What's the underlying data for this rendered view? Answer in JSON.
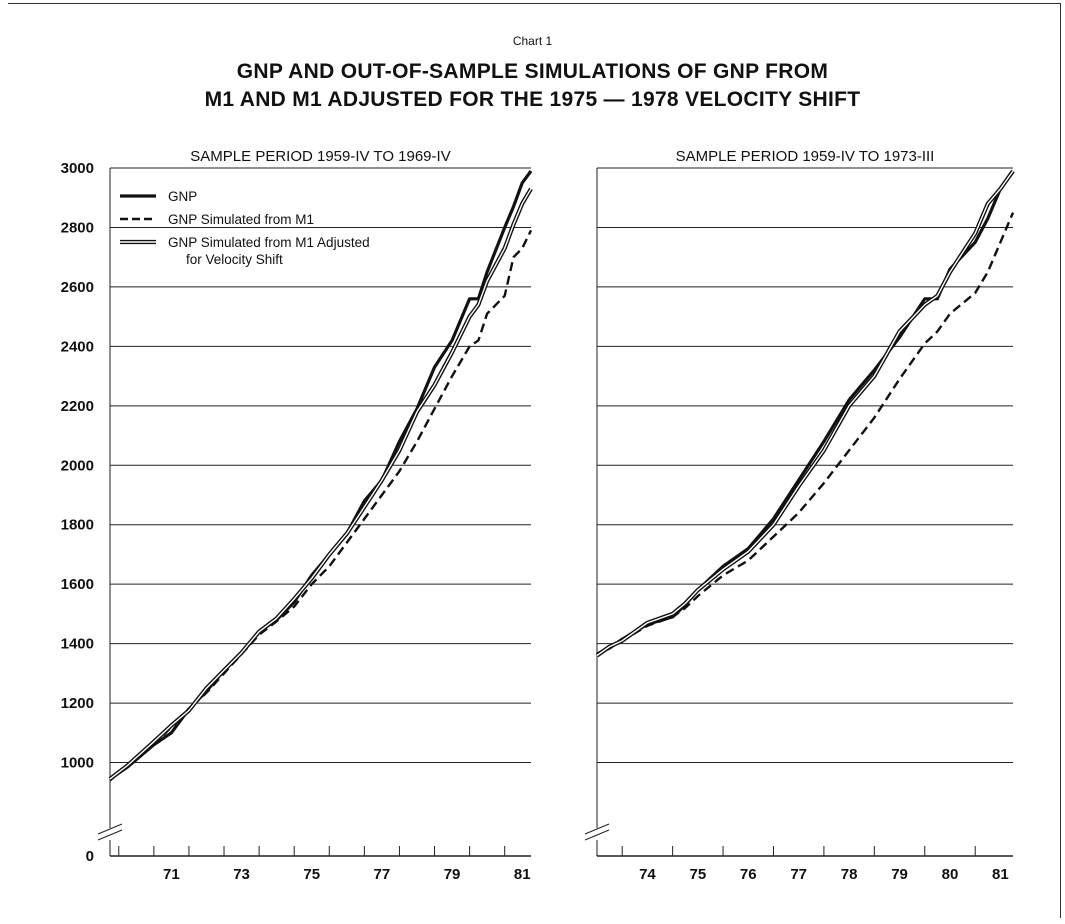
{
  "figure": {
    "label": "Chart 1",
    "title_line1": "GNP AND OUT-OF-SAMPLE SIMULATIONS OF GNP FROM",
    "title_line2": "M1 AND M1 ADJUSTED FOR THE 1975 — 1978 VELOCITY SHIFT"
  },
  "legend": {
    "items": [
      {
        "label": "GNP",
        "style": "solid"
      },
      {
        "label": "GNP Simulated from M1",
        "style": "dashed"
      },
      {
        "label": "GNP Simulated from M1 Adjusted",
        "label2": "for Velocity Shift",
        "style": "double"
      }
    ]
  },
  "chart_data": [
    {
      "type": "line",
      "title": "SAMPLE PERIOD 1959-IV TO 1969-IV",
      "xlabel": "",
      "ylabel": "",
      "xlim": [
        1969.75,
        1981.75
      ],
      "ylim": [
        800,
        3000
      ],
      "y_axis_break": true,
      "y_ticks": [
        0,
        1000,
        1200,
        1400,
        1600,
        1800,
        2000,
        2200,
        2400,
        2600,
        2800,
        3000
      ],
      "x_ticks": [
        71,
        73,
        75,
        77,
        79,
        81
      ],
      "grid": "horizontal",
      "legend_position": "top-left",
      "x": [
        1969.75,
        1970.25,
        1971,
        1971.5,
        1972,
        1972.5,
        1973,
        1973.5,
        1974,
        1974.5,
        1975,
        1975.5,
        1976,
        1976.5,
        1977,
        1977.5,
        1978,
        1978.5,
        1979,
        1979.5,
        1980,
        1980.25,
        1980.5,
        1981,
        1981.25,
        1981.5,
        1981.75
      ],
      "series": [
        {
          "name": "GNP",
          "style": "solid",
          "values": [
            945,
            985,
            1060,
            1100,
            1180,
            1240,
            1310,
            1370,
            1440,
            1480,
            1540,
            1630,
            1700,
            1770,
            1880,
            1950,
            2080,
            2190,
            2330,
            2420,
            2560,
            2560,
            2650,
            2800,
            2870,
            2950,
            2990
          ]
        },
        {
          "name": "GNP Simulated from M1",
          "style": "dashed",
          "values": [
            940,
            990,
            1060,
            1120,
            1180,
            1235,
            1300,
            1365,
            1430,
            1475,
            1525,
            1600,
            1660,
            1740,
            1820,
            1900,
            1980,
            2080,
            2190,
            2300,
            2400,
            2420,
            2510,
            2570,
            2700,
            2730,
            2790
          ]
        },
        {
          "name": "GNP Simulated from M1 Adjusted for Velocity Shift",
          "style": "double",
          "values": [
            945,
            990,
            1070,
            1125,
            1175,
            1250,
            1310,
            1370,
            1440,
            1485,
            1550,
            1620,
            1700,
            1770,
            1860,
            1950,
            2050,
            2180,
            2270,
            2380,
            2500,
            2540,
            2620,
            2730,
            2810,
            2880,
            2930
          ]
        }
      ]
    },
    {
      "type": "line",
      "title": "SAMPLE PERIOD 1959-IV TO 1973-III",
      "xlabel": "",
      "ylabel": "",
      "xlim": [
        1973.5,
        1981.75
      ],
      "ylim": [
        800,
        3000
      ],
      "y_axis_break": true,
      "x_ticks": [
        74,
        75,
        76,
        77,
        78,
        79,
        80,
        81
      ],
      "grid": "horizontal",
      "x": [
        1973.5,
        1973.75,
        1974,
        1974.5,
        1975,
        1975.25,
        1975.5,
        1976,
        1976.5,
        1977,
        1977.5,
        1978,
        1978.5,
        1979,
        1979.5,
        1980,
        1980.25,
        1980.5,
        1981,
        1981.25,
        1981.5,
        1981.75
      ],
      "series": [
        {
          "name": "GNP",
          "style": "solid",
          "values": [
            1365,
            1385,
            1415,
            1465,
            1490,
            1530,
            1580,
            1660,
            1720,
            1820,
            1950,
            2080,
            2220,
            2320,
            2430,
            2560,
            2560,
            2660,
            2750,
            2830,
            2930,
            2990
          ]
        },
        {
          "name": "GNP Simulated from M1",
          "style": "dashed",
          "values": [
            1360,
            1385,
            1410,
            1460,
            1490,
            1520,
            1560,
            1630,
            1680,
            1760,
            1840,
            1940,
            2050,
            2160,
            2290,
            2410,
            2450,
            2510,
            2580,
            2650,
            2750,
            2850
          ]
        },
        {
          "name": "GNP Simulated from M1 Adjusted for Velocity Shift",
          "style": "double",
          "values": [
            1360,
            1390,
            1410,
            1470,
            1500,
            1535,
            1580,
            1650,
            1710,
            1800,
            1930,
            2050,
            2200,
            2300,
            2450,
            2540,
            2570,
            2650,
            2780,
            2880,
            2930,
            2990
          ]
        }
      ]
    }
  ]
}
